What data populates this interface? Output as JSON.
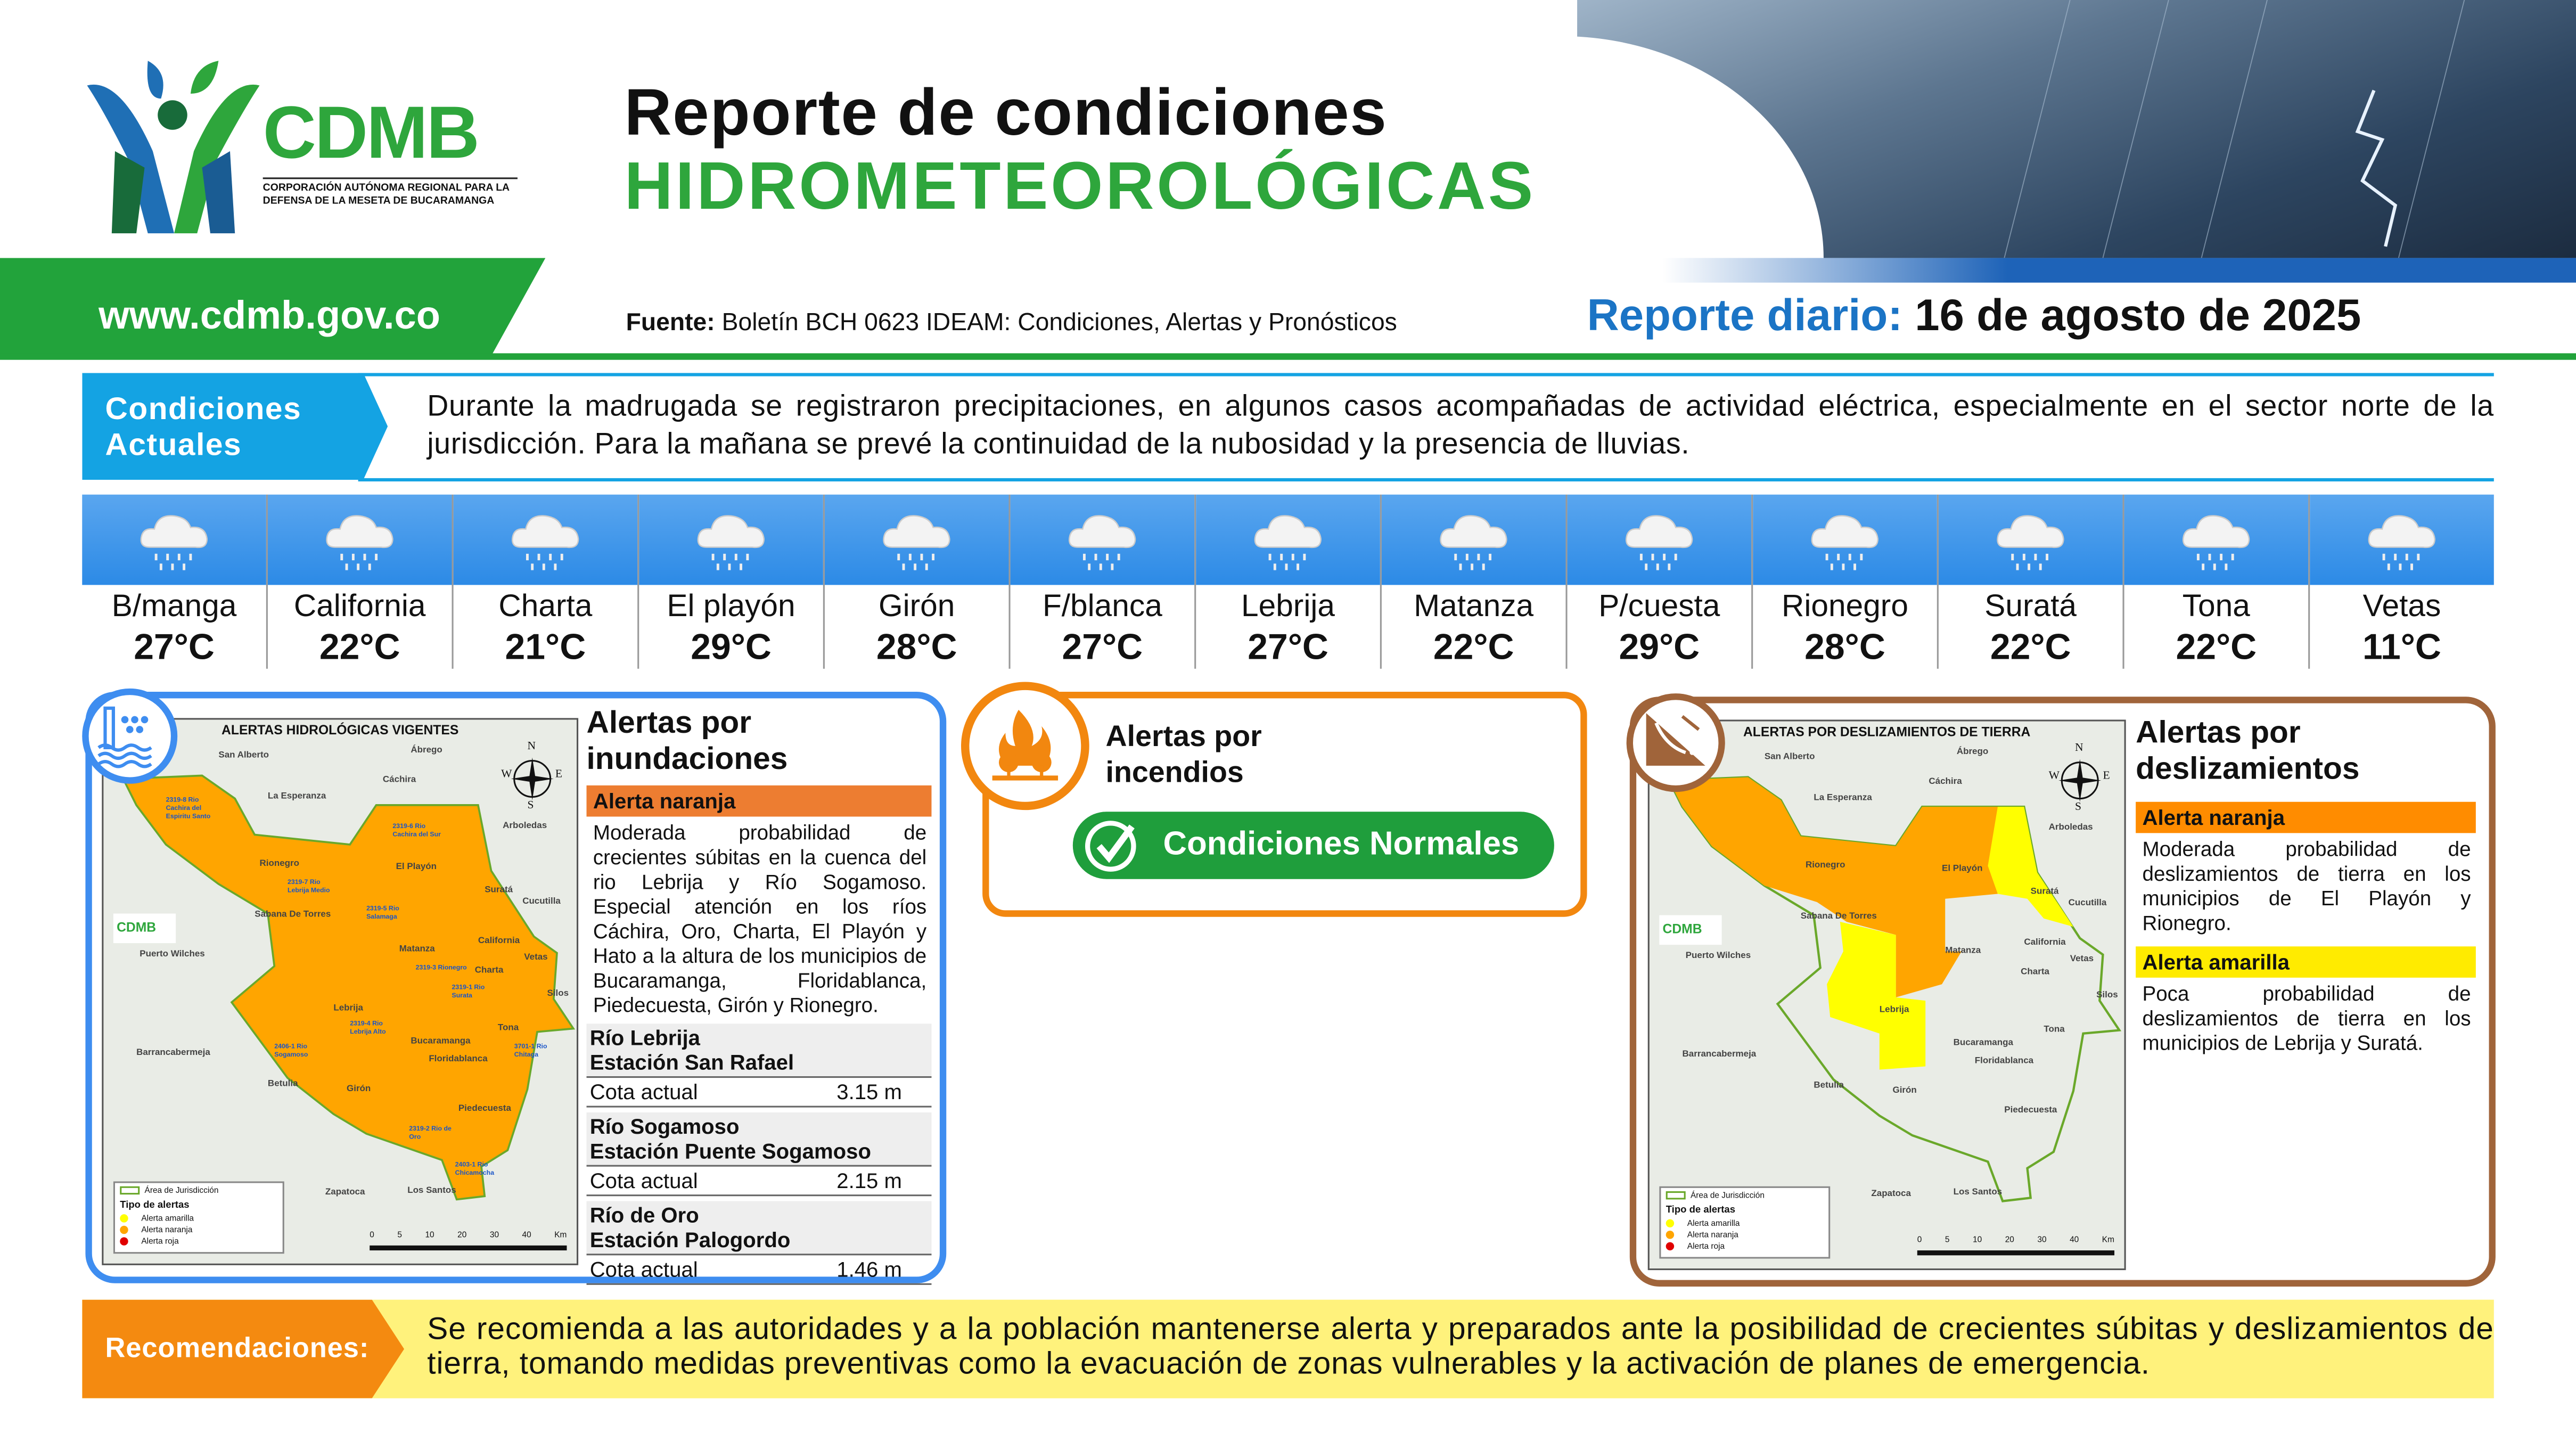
{
  "header": {
    "logo": {
      "name": "CDMB",
      "subtitle": "CORPORACIÓN AUTÓNOMA REGIONAL PARA LA DEFENSA DE LA MESETA DE BUCARAMANGA"
    },
    "title_line1": "Reporte de condiciones",
    "title_line2": "HIDROMETEOROLÓGICAS",
    "url": "www.cdmb.gov.co",
    "source_label": "Fuente:",
    "source_text": "Boletín BCH 0623 IDEAM: Condiciones, Alertas y Pronósticos",
    "report_label": "Reporte diario:",
    "report_date": "16 de agosto de 2025"
  },
  "conditions": {
    "label": "Condiciones Actuales",
    "text": "Durante la madrugada se registraron precipitaciones, en algunos casos acompañadas de actividad eléctrica, especialmente en el sector norte de la jurisdicción. Para la mañana se prevé la continuidad de la nubosidad y la presencia de lluvias."
  },
  "weather": [
    {
      "name": "B/manga",
      "temp": "27°C",
      "icon": "rain-cloud-icon"
    },
    {
      "name": "California",
      "temp": "22°C",
      "icon": "rain-cloud-icon"
    },
    {
      "name": "Charta",
      "temp": "21°C",
      "icon": "rain-cloud-icon"
    },
    {
      "name": "El playón",
      "temp": "29°C",
      "icon": "rain-cloud-icon"
    },
    {
      "name": "Girón",
      "temp": "28°C",
      "icon": "rain-cloud-icon"
    },
    {
      "name": "F/blanca",
      "temp": "27°C",
      "icon": "rain-cloud-icon"
    },
    {
      "name": "Lebrija",
      "temp": "27°C",
      "icon": "rain-cloud-icon"
    },
    {
      "name": "Matanza",
      "temp": "22°C",
      "icon": "rain-cloud-icon"
    },
    {
      "name": "P/cuesta",
      "temp": "29°C",
      "icon": "rain-cloud-icon"
    },
    {
      "name": "Rionegro",
      "temp": "28°C",
      "icon": "rain-cloud-icon"
    },
    {
      "name": "Suratá",
      "temp": "22°C",
      "icon": "rain-cloud-icon"
    },
    {
      "name": "Tona",
      "temp": "22°C",
      "icon": "rain-cloud-icon"
    },
    {
      "name": "Vetas",
      "temp": "11°C",
      "icon": "rain-cloud-icon"
    }
  ],
  "flood": {
    "title": "Alertas por inundaciones",
    "map_title": "ALERTAS HIDROLÓGICAS VIGENTES",
    "alert_label": "Alerta naranja",
    "alert_color": "#ed7d31",
    "description": "Moderada probabilidad de crecientes súbitas en la cuenca del rio Lebrija y Río Sogamoso. Especial atención en los ríos Cáchira, Oro, Charta, El Playón y Hato a la altura de los municipios de Bucaramanga, Floridablanca, Piedecuesta, Girón y Rionegro.",
    "stations": [
      {
        "river": "Río Lebrija",
        "station": "Estación San Rafael",
        "label": "Cota actual",
        "value": "3.15 m"
      },
      {
        "river": "Río Sogamoso",
        "station": "Estación Puente Sogamoso",
        "label": "Cota actual",
        "value": "2.15 m"
      },
      {
        "river": "Río de Oro",
        "station": "Estación Palogordo",
        "label": "Cota actual",
        "value": "1.46 m"
      }
    ]
  },
  "fire": {
    "title": "Alertas por incendios",
    "status": "Condiciones Normales",
    "status_color": "#1f9e3c"
  },
  "landslide": {
    "title": "Alertas por deslizamientos",
    "map_title": "ALERTAS POR DESLIZAMIENTOS DE TIERRA",
    "alerts": [
      {
        "label": "Alerta naranja",
        "color": "#ff8c00",
        "text": "Moderada probabilidad de deslizamientos de tierra en los municipios de El Playón y Rionegro."
      },
      {
        "label": "Alerta amarilla",
        "color": "#ffeb00",
        "text": "Poca probabilidad de deslizamientos de tierra en los municipios de Lebrija y Suratá."
      }
    ]
  },
  "map_common": {
    "places": [
      "San Alberto",
      "Ábrego",
      "Cáchira",
      "La Esperanza",
      "Rionegro",
      "El Playón",
      "Suratá",
      "Sabana De Torres",
      "Puerto Wilches",
      "Matanza",
      "California",
      "Vetas",
      "Charta",
      "Lebrija",
      "Tona",
      "Bucaramanga",
      "Floridablanca",
      "Barrancabermeja",
      "Betulia",
      "Girón",
      "Piedecuesta",
      "Zapatoca",
      "Los Santos",
      "Arboledas",
      "Cucutilla",
      "Silos"
    ],
    "legend_area": "Área de Jurisdicción",
    "legend_title": "Tipo de alertas",
    "legend_items": [
      {
        "label": "Alerta amarilla",
        "color": "#ffff00"
      },
      {
        "label": "Alerta naranja",
        "color": "#ffa500"
      },
      {
        "label": "Alerta roja",
        "color": "#e00000"
      }
    ],
    "scale": [
      "0",
      "5",
      "10",
      "20",
      "30",
      "40",
      "Km"
    ],
    "compass": [
      "N",
      "S",
      "W",
      "E"
    ],
    "basin_labels": [
      "2319-8 Rio Cachira del Espiritu Santo",
      "2319-7 Rio Lebrija Medio",
      "2319-6 Rio Cachira del Sur",
      "2319-5 Rio Salamaga",
      "2319-3 Rionegro",
      "2319-1 Rio Surata",
      "2319-4 Rio Lebrija Alto",
      "2406-1 Rio Sogamoso",
      "3701-1 Rio Chitaga",
      "2319-2 Rio de Oro",
      "2403-1 Rio Chicamocha"
    ]
  },
  "recommendations": {
    "label": "Recomendaciones:",
    "text": "Se recomienda a las autoridades y a la población mantenerse alerta y preparados ante la posibilidad de crecientes súbitas y deslizamientos de tierra, tomando medidas preventivas como la evacuación de zonas vulnerables y la activación de planes de emergencia."
  }
}
